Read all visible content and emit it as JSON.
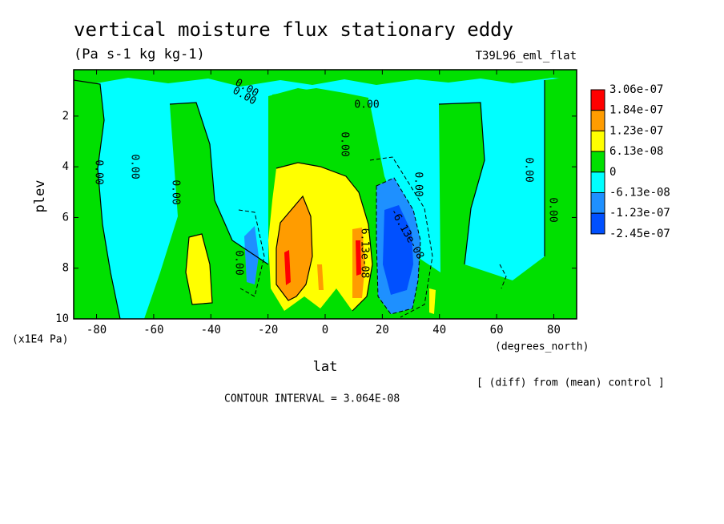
{
  "chart_data": {
    "type": "contour",
    "title": "vertical moisture flux stationary eddy",
    "subtitle": "(Pa s-1 kg kg-1)",
    "dataset": "T39L96_eml_flat",
    "x_label": "lat",
    "x_units": "(degrees_north)",
    "y_label": "plev",
    "y_units": "(x1E4 Pa)",
    "xlim": [
      -88,
      88
    ],
    "ylim": [
      10,
      0.17
    ],
    "xticks": [
      -80,
      -60,
      -40,
      -20,
      0,
      20,
      40,
      60,
      80
    ],
    "yticks": [
      2,
      4,
      6,
      8,
      10
    ],
    "levels": [
      {
        "value": 3.06e-07,
        "label": "3.06e-07"
      },
      {
        "value": 1.84e-07,
        "label": "1.84e-07"
      },
      {
        "value": 1.23e-07,
        "label": "1.23e-07"
      },
      {
        "value": 6.13e-08,
        "label": "6.13e-08"
      },
      0,
      {
        "value": -6.13e-08,
        "label": "-6.13e-08"
      },
      {
        "value": -1.23e-07,
        "label": "-1.23e-07"
      },
      {
        "value": -2.45e-07,
        "label": "-2.45e-07"
      }
    ],
    "colors": [
      "#ff0000",
      "#ff9c00",
      "#ffff00",
      "#00e000",
      "#00ffff",
      "#1e90ff",
      "#0050ff"
    ],
    "contour_labels": [
      "0.00",
      "0.00",
      "0.00",
      "0.00",
      "0.00",
      "0.00",
      "0.00",
      "0.00",
      "0.00",
      "0.00",
      "0.00",
      "6.13e-08",
      "-6.13e-08"
    ],
    "footnote": "[ (diff) from (mean) control ]",
    "contour_interval": "CONTOUR INTERVAL = 3.064E-08"
  }
}
